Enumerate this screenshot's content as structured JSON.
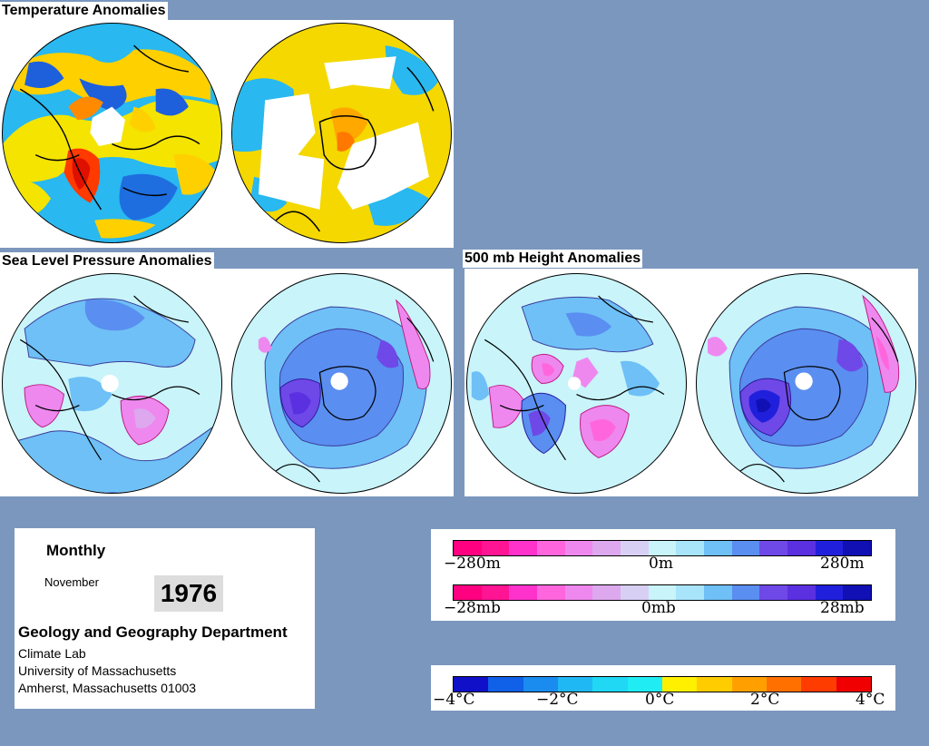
{
  "titles": {
    "temperature": "Temperature Anomalies",
    "slp": "Sea Level Pressure Anomalies",
    "height": "500 mb Height Anomalies"
  },
  "info": {
    "period": "Monthly",
    "month": "November",
    "year": "1976",
    "department": "Geology and Geography Department",
    "lab": "Climate Lab",
    "university": "University of Massachusetts",
    "address": "Amherst, Massachusetts 01003"
  },
  "scales": {
    "height": {
      "left": "−280m",
      "mid": "0m",
      "right": "280m"
    },
    "pressure": {
      "left": "−28mb",
      "mid": "0mb",
      "right": "28mb"
    },
    "temperature": {
      "t1": "−4°C",
      "t2": "−2°C",
      "t3": "0°C",
      "t4": "2°C",
      "t5": "4°C"
    }
  },
  "colors": {
    "background": "#7b97be",
    "anomaly_scale": [
      "#ff0080",
      "#ff1493",
      "#ff33cc",
      "#ff66dd",
      "#ee88ee",
      "#dda8ee",
      "#d8d0f4",
      "#c8f4fa",
      "#a8e4fa",
      "#6ec0f6",
      "#5a8ef0",
      "#6f48e8",
      "#5a30e0",
      "#2020dc",
      "#1010b4"
    ],
    "temperature_scale": [
      "#1010c8",
      "#1060e8",
      "#1a8cf0",
      "#20b8f4",
      "#20d8f4",
      "#20ecf4",
      "#fff000",
      "#ffcc00",
      "#ffa000",
      "#ff7000",
      "#ff3c00",
      "#f00000"
    ]
  }
}
